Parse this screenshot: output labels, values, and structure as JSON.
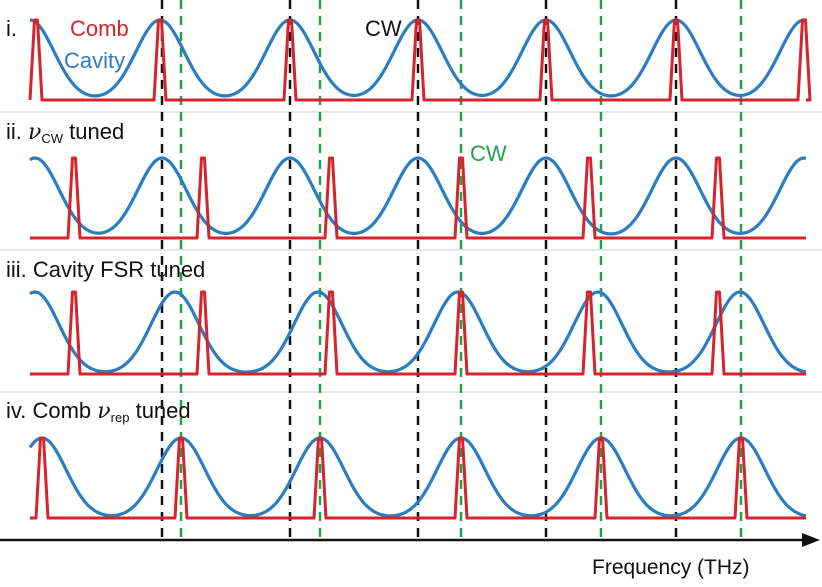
{
  "legend": {
    "comb": "Comb",
    "cavity": "Cavity",
    "comb_color": "#d6242c",
    "cavity_color": "#2c7cc0"
  },
  "panels": [
    {
      "numeral": "i.",
      "title": ""
    },
    {
      "numeral": "ii.",
      "symbol": "ν",
      "sub": "CW",
      "title": " tuned"
    },
    {
      "numeral": "iii.",
      "title": " Cavity FSR tuned"
    },
    {
      "numeral": "iv.",
      "title": " Comb ",
      "symbol": "ν",
      "sub": "rep",
      "title2": " tuned"
    }
  ],
  "annotations": {
    "cw_black": "CW",
    "cw_green": "CW"
  },
  "axis": {
    "xlabel": "Frequency (THz)"
  },
  "colors": {
    "dashed_black": "#111111",
    "dashed_green": "#22a34a"
  }
}
